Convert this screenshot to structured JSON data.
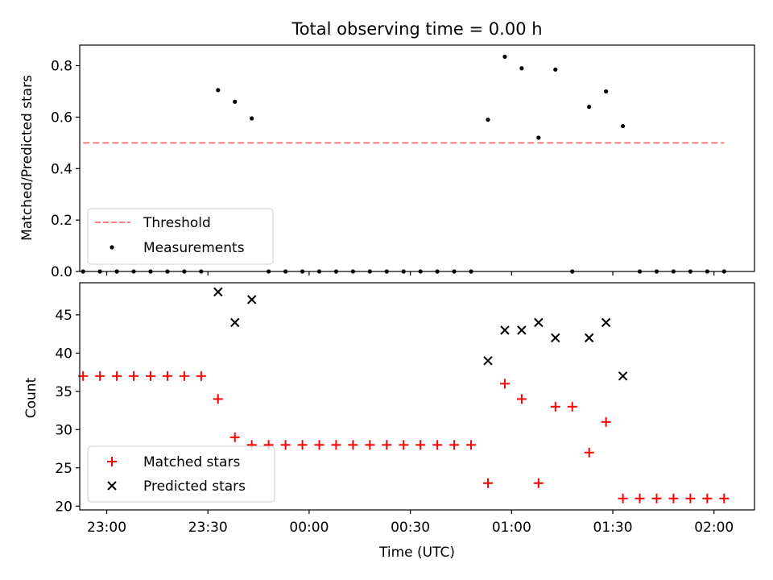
{
  "figure": {
    "title": "Total observing time = 0.00 h"
  },
  "chart_data": [
    {
      "type": "scatter",
      "title": "Total observing time = 0.00 h",
      "xlabel": "",
      "ylabel": "Matched/Predicted stars",
      "ylim": [
        0,
        0.88
      ],
      "yticks": [
        0.0,
        0.2,
        0.4,
        0.6,
        0.8
      ],
      "ytick_labels": [
        "0.0",
        "0.2",
        "0.4",
        "0.6",
        "0.8"
      ],
      "x_axis": "time (UTC)",
      "xlim": [
        "22:52",
        "02:12"
      ],
      "grid": false,
      "legend": "lower-left",
      "series": [
        {
          "name": "Threshold",
          "kind": "dashed-line",
          "color": "#ff7f7f",
          "x": [
            "22:53",
            "02:03"
          ],
          "y": [
            0.5,
            0.5
          ]
        },
        {
          "name": "Measurements",
          "kind": "points",
          "color": "#000000",
          "x": [
            "22:53",
            "22:58",
            "23:03",
            "23:08",
            "23:13",
            "23:18",
            "23:23",
            "23:28",
            "23:33",
            "23:38",
            "23:43",
            "23:48",
            "23:53",
            "23:58",
            "00:03",
            "00:08",
            "00:13",
            "00:18",
            "00:23",
            "00:28",
            "00:33",
            "00:38",
            "00:43",
            "00:48",
            "00:53",
            "00:58",
            "01:03",
            "01:08",
            "01:13",
            "01:18",
            "01:23",
            "01:28",
            "01:33",
            "01:38",
            "01:43",
            "01:48",
            "01:53",
            "01:58",
            "02:03"
          ],
          "y": [
            0,
            0,
            0,
            0,
            0,
            0,
            0,
            0,
            0.705,
            0.66,
            0.595,
            0,
            0,
            0,
            0,
            0,
            0,
            0,
            0,
            0,
            0,
            0,
            0,
            0,
            0.59,
            0.835,
            0.79,
            0.52,
            0.785,
            0,
            0.64,
            0.7,
            0.565,
            0,
            0,
            0,
            0,
            0,
            0
          ]
        }
      ]
    },
    {
      "type": "scatter",
      "xlabel": "Time (UTC)",
      "ylabel": "Count",
      "ylim": [
        19.5,
        49.2
      ],
      "yticks": [
        20,
        25,
        30,
        35,
        40,
        45
      ],
      "ytick_labels": [
        "20",
        "25",
        "30",
        "35",
        "40",
        "45"
      ],
      "x_axis": "time (UTC)",
      "xlim": [
        "22:52",
        "02:12"
      ],
      "xticks": [
        "23:00",
        "23:30",
        "00:00",
        "00:30",
        "01:00",
        "01:30",
        "02:00"
      ],
      "xtick_labels": [
        "23:00",
        "23:30",
        "00:00",
        "00:30",
        "01:00",
        "01:30",
        "02:00"
      ],
      "grid": false,
      "legend": "lower-left",
      "series": [
        {
          "name": "Matched stars",
          "marker": "plus",
          "color": "#ff0000",
          "x": [
            "22:53",
            "22:58",
            "23:03",
            "23:08",
            "23:13",
            "23:18",
            "23:23",
            "23:28",
            "23:33",
            "23:38",
            "23:43",
            "23:48",
            "23:53",
            "23:58",
            "00:03",
            "00:08",
            "00:13",
            "00:18",
            "00:23",
            "00:28",
            "00:33",
            "00:38",
            "00:43",
            "00:48",
            "00:53",
            "00:58",
            "01:03",
            "01:08",
            "01:13",
            "01:18",
            "01:23",
            "01:28",
            "01:33",
            "01:38",
            "01:43",
            "01:48",
            "01:53",
            "01:58",
            "02:03"
          ],
          "y": [
            37,
            37,
            37,
            37,
            37,
            37,
            37,
            37,
            34,
            29,
            28,
            28,
            28,
            28,
            28,
            28,
            28,
            28,
            28,
            28,
            28,
            28,
            28,
            28,
            23,
            36,
            34,
            23,
            33,
            33,
            27,
            31,
            21,
            21,
            21,
            21,
            21,
            21,
            21
          ]
        },
        {
          "name": "Predicted stars",
          "marker": "x",
          "color": "#000000",
          "x": [
            "23:33",
            "23:38",
            "23:43",
            "00:53",
            "00:58",
            "01:03",
            "01:08",
            "01:13",
            "01:23",
            "01:28",
            "01:33"
          ],
          "y": [
            48,
            44,
            47,
            39,
            43,
            43,
            44,
            42,
            42,
            44,
            37
          ]
        }
      ]
    }
  ]
}
